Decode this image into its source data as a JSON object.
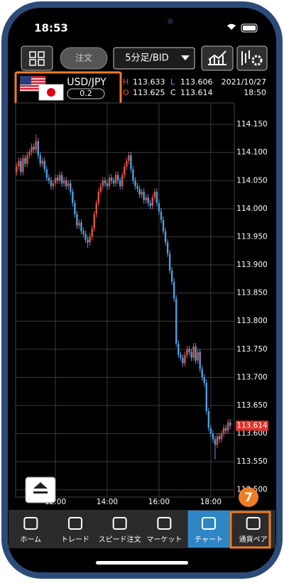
{
  "status_bar": {
    "time": "18:53"
  },
  "toolbar": {
    "order_button": "注文",
    "timeframe": "5分足/BID"
  },
  "quote": {
    "pair": "USD/JPY",
    "spread": 0.2,
    "high_label": "H",
    "high": 113.633,
    "open_label": "O",
    "open": 113.625,
    "low_label": "L",
    "low": 113.606,
    "close_label": "C",
    "close": 113.614,
    "date": "2021/10/27",
    "time": "18:50"
  },
  "chart_data": {
    "type": "candlestick",
    "grid": true,
    "up_color": "#e0523f",
    "down_color": "#4f9fe0",
    "last_price_color": "#e0302a",
    "ylim": [
      113.487,
      114.188
    ],
    "yticks": [
      {
        "value": 114.15,
        "label": "114.150"
      },
      {
        "value": 114.1,
        "label": "114.100"
      },
      {
        "value": 114.05,
        "label": "114.050"
      },
      {
        "value": 114.0,
        "label": "114.000"
      },
      {
        "value": 113.95,
        "label": "113.950"
      },
      {
        "value": 113.9,
        "label": "113.900"
      },
      {
        "value": 113.85,
        "label": "113.850"
      },
      {
        "value": 113.8,
        "label": "113.800"
      },
      {
        "value": 113.75,
        "label": "113.750"
      },
      {
        "value": 113.7,
        "label": "113.700"
      },
      {
        "value": 113.65,
        "label": "113.650"
      },
      {
        "value": 113.6,
        "label": "113.600"
      },
      {
        "value": 113.55,
        "label": "113.550"
      },
      {
        "value": 113.5,
        "label": "113.500"
      }
    ],
    "categories": [
      null,
      null,
      null,
      null,
      null,
      null,
      null,
      null,
      null,
      null,
      null,
      null,
      null,
      null,
      null,
      null,
      null,
      null,
      "12:00",
      null,
      null,
      null,
      null,
      null,
      null,
      null,
      null,
      null,
      null,
      null,
      null,
      null,
      null,
      null,
      null,
      null,
      null,
      null,
      null,
      null,
      null,
      null,
      "14:00",
      null,
      null,
      null,
      null,
      null,
      null,
      null,
      null,
      null,
      null,
      null,
      null,
      null,
      null,
      null,
      null,
      null,
      null,
      null,
      null,
      null,
      null,
      null,
      "16:00",
      null,
      null,
      null,
      null,
      null,
      null,
      null,
      null,
      null,
      null,
      null,
      null,
      null,
      null,
      null,
      null,
      null,
      null,
      null,
      null,
      null,
      null,
      null,
      "18:00",
      null,
      null,
      null,
      null,
      null,
      null,
      null,
      null,
      null
    ],
    "open": [
      114.065,
      114.075,
      114.085,
      114.065,
      114.09,
      114.08,
      114.095,
      114.1,
      114.11,
      114.105,
      114.12,
      114.095,
      114.08,
      114.085,
      114.07,
      114.055,
      114.05,
      114.04,
      114.045,
      114.055,
      114.05,
      114.06,
      114.045,
      114.05,
      114.04,
      114.045,
      114.03,
      114.01,
      113.99,
      113.97,
      113.975,
      113.96,
      113.955,
      113.945,
      113.94,
      113.95,
      113.965,
      113.99,
      114.01,
      114.03,
      114.04,
      114.05,
      114.045,
      114.04,
      114.055,
      114.05,
      114.045,
      114.06,
      114.05,
      114.04,
      114.06,
      114.075,
      114.085,
      114.095,
      114.07,
      114.05,
      114.04,
      114.035,
      114.025,
      114.03,
      114.015,
      114.02,
      114.01,
      114.005,
      114.02,
      114.03,
      114.01,
      113.995,
      113.98,
      113.96,
      113.94,
      113.92,
      113.89,
      113.87,
      113.84,
      113.76,
      113.74,
      113.735,
      113.725,
      113.74,
      113.75,
      113.745,
      113.735,
      113.755,
      113.73,
      113.745,
      113.715,
      113.7,
      113.69,
      113.64,
      113.61,
      113.6,
      113.59,
      113.58,
      113.595,
      113.59,
      113.6,
      113.61,
      113.605,
      113.62
    ],
    "high": [
      114.081,
      114.091,
      114.091,
      114.096,
      114.096,
      114.101,
      114.106,
      114.116,
      114.116,
      114.132,
      114.126,
      114.101,
      114.091,
      114.091,
      114.076,
      114.061,
      114.056,
      114.051,
      114.061,
      114.061,
      114.066,
      114.066,
      114.056,
      114.056,
      114.051,
      114.051,
      114.036,
      114.016,
      113.996,
      113.981,
      113.981,
      113.966,
      113.961,
      113.951,
      113.956,
      113.971,
      113.996,
      114.016,
      114.036,
      114.046,
      114.056,
      114.056,
      114.051,
      114.061,
      114.061,
      114.056,
      114.066,
      114.066,
      114.056,
      114.066,
      114.081,
      114.091,
      114.101,
      114.101,
      114.076,
      114.056,
      114.046,
      114.041,
      114.036,
      114.036,
      114.026,
      114.026,
      114.016,
      114.026,
      114.036,
      114.036,
      114.016,
      114.001,
      113.986,
      113.966,
      113.946,
      113.926,
      113.896,
      113.876,
      113.846,
      113.766,
      113.746,
      113.741,
      113.746,
      113.756,
      113.756,
      113.751,
      113.761,
      113.761,
      113.751,
      113.751,
      113.721,
      113.706,
      113.696,
      113.646,
      113.616,
      113.606,
      113.596,
      113.601,
      113.601,
      113.606,
      113.616,
      113.616,
      113.626,
      113.626
    ],
    "low": [
      114.059,
      114.069,
      114.059,
      114.059,
      114.074,
      114.074,
      114.089,
      114.094,
      114.099,
      114.099,
      114.089,
      114.074,
      114.074,
      114.064,
      114.049,
      114.044,
      114.034,
      114.034,
      114.039,
      114.044,
      114.044,
      114.039,
      114.039,
      114.034,
      114.034,
      114.024,
      114.004,
      113.984,
      113.964,
      113.964,
      113.954,
      113.949,
      113.939,
      113.93,
      113.934,
      113.944,
      113.959,
      113.984,
      114.004,
      114.024,
      114.034,
      114.039,
      114.034,
      114.034,
      114.044,
      114.039,
      114.039,
      114.044,
      114.034,
      114.034,
      114.054,
      114.069,
      114.079,
      114.064,
      114.044,
      114.034,
      114.029,
      114.019,
      114.019,
      114.009,
      114.009,
      114.004,
      113.999,
      113.999,
      114.014,
      114.004,
      113.989,
      113.974,
      113.954,
      113.934,
      113.914,
      113.884,
      113.864,
      113.834,
      113.754,
      113.734,
      113.729,
      113.719,
      113.719,
      113.734,
      113.739,
      113.729,
      113.729,
      113.724,
      113.724,
      113.709,
      113.694,
      113.684,
      113.634,
      113.604,
      113.594,
      113.584,
      113.554,
      113.574,
      113.584,
      113.584,
      113.594,
      113.599,
      113.599,
      113.608
    ],
    "close": [
      114.075,
      114.085,
      114.065,
      114.09,
      114.08,
      114.095,
      114.1,
      114.11,
      114.105,
      114.12,
      114.095,
      114.08,
      114.085,
      114.07,
      114.055,
      114.05,
      114.04,
      114.045,
      114.055,
      114.05,
      114.06,
      114.045,
      114.05,
      114.04,
      114.045,
      114.03,
      114.01,
      113.99,
      113.97,
      113.975,
      113.96,
      113.955,
      113.945,
      113.94,
      113.95,
      113.965,
      113.99,
      114.01,
      114.03,
      114.04,
      114.05,
      114.045,
      114.04,
      114.055,
      114.05,
      114.045,
      114.06,
      114.05,
      114.04,
      114.06,
      114.075,
      114.085,
      114.095,
      114.07,
      114.05,
      114.04,
      114.035,
      114.025,
      114.03,
      114.015,
      114.02,
      114.01,
      114.005,
      114.02,
      114.03,
      114.01,
      113.995,
      113.98,
      113.96,
      113.94,
      113.92,
      113.89,
      113.87,
      113.84,
      113.76,
      113.74,
      113.735,
      113.725,
      113.74,
      113.75,
      113.745,
      113.735,
      113.755,
      113.73,
      113.745,
      113.715,
      113.7,
      113.69,
      113.64,
      113.61,
      113.6,
      113.59,
      113.58,
      113.595,
      113.59,
      113.6,
      113.61,
      113.605,
      113.62,
      113.614
    ]
  },
  "tab_bar": {
    "items": [
      "ホーム",
      "トレード",
      "スピード注文",
      "マーケット",
      "チャート",
      "通貨ペア"
    ],
    "active": 4
  },
  "annotation": {
    "label": 7
  }
}
